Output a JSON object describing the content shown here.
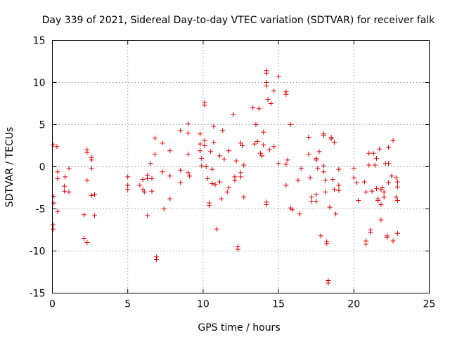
{
  "chart_data": {
    "type": "scatter",
    "title": "Day 339 of 2021, Sidereal Day-to-day VTEC variation (SDTVAR) for receiver falk",
    "xlabel": "GPS time / hours",
    "ylabel": "SDTVAR / TECUs",
    "xlim": [
      0,
      25
    ],
    "ylim": [
      -15,
      15
    ],
    "xticks": [
      "0",
      "5",
      "10",
      "15",
      "20",
      "25"
    ],
    "yticks": [
      "-15",
      "-10",
      "-5",
      "0",
      "5",
      "10",
      "15"
    ],
    "xtick_values": [
      0,
      5,
      10,
      15,
      20,
      25
    ],
    "ytick_values": [
      -15,
      -10,
      -5,
      0,
      5,
      10,
      15
    ],
    "grid": true,
    "marker": "+",
    "color": "#e00000",
    "series": [
      {
        "name": "SDTVAR",
        "points": [
          [
            0.05,
            2.6
          ],
          [
            0.1,
            -3.5
          ],
          [
            0.1,
            -4.3
          ],
          [
            0.05,
            -6.9
          ],
          [
            0.05,
            -7.4
          ],
          [
            0.3,
            2.4
          ],
          [
            0.35,
            -0.6
          ],
          [
            0.35,
            -1.4
          ],
          [
            0.35,
            -5.3
          ],
          [
            0.8,
            -2.3
          ],
          [
            0.8,
            -2.9
          ],
          [
            0.85,
            -1.2
          ],
          [
            1.1,
            -0.2
          ],
          [
            1.1,
            -3.0
          ],
          [
            2.1,
            -5.7
          ],
          [
            2.1,
            -8.5
          ],
          [
            2.3,
            2.0
          ],
          [
            2.3,
            1.7
          ],
          [
            2.3,
            -1.6
          ],
          [
            2.3,
            -9.0
          ],
          [
            2.6,
            -0.2
          ],
          [
            2.6,
            0.8
          ],
          [
            2.6,
            1.1
          ],
          [
            2.6,
            -3.4
          ],
          [
            2.8,
            -3.3
          ],
          [
            2.8,
            -5.8
          ],
          [
            5.0,
            -1.2
          ],
          [
            5.0,
            -2.2
          ],
          [
            5.0,
            -2.7
          ],
          [
            5.8,
            -2.2
          ],
          [
            6.0,
            -1.5
          ],
          [
            6.0,
            -2.7
          ],
          [
            6.1,
            -3.0
          ],
          [
            6.3,
            -1.0
          ],
          [
            6.3,
            -1.4
          ],
          [
            6.3,
            -5.8
          ],
          [
            6.5,
            0.4
          ],
          [
            6.6,
            -1.4
          ],
          [
            6.6,
            -2.9
          ],
          [
            6.8,
            3.4
          ],
          [
            6.8,
            1.5
          ],
          [
            6.9,
            -10.7
          ],
          [
            6.9,
            -11.0
          ],
          [
            7.3,
            2.8
          ],
          [
            7.3,
            -0.6
          ],
          [
            7.4,
            -5.0
          ],
          [
            7.8,
            1.9
          ],
          [
            7.8,
            -1.1
          ],
          [
            7.8,
            -3.8
          ],
          [
            8.5,
            4.3
          ],
          [
            8.5,
            -0.4
          ],
          [
            8.5,
            -1.9
          ],
          [
            9.0,
            5.1
          ],
          [
            9.0,
            4.0
          ],
          [
            9.0,
            1.5
          ],
          [
            9.0,
            -0.7
          ],
          [
            9.1,
            -1.1
          ],
          [
            9.8,
            3.9
          ],
          [
            9.8,
            2.7
          ],
          [
            9.8,
            1.9
          ],
          [
            9.9,
            1.0
          ],
          [
            9.9,
            0.1
          ],
          [
            10.1,
            7.6
          ],
          [
            10.1,
            7.3
          ],
          [
            10.1,
            3.1
          ],
          [
            10.1,
            2.5
          ],
          [
            10.2,
            0.0
          ],
          [
            10.3,
            -1.4
          ],
          [
            10.4,
            -4.3
          ],
          [
            10.4,
            -4.6
          ],
          [
            10.5,
            1.8
          ],
          [
            10.6,
            -0.3
          ],
          [
            10.6,
            -2.0
          ],
          [
            10.7,
            4.8
          ],
          [
            10.7,
            2.9
          ],
          [
            10.8,
            -2.1
          ],
          [
            10.9,
            -7.4
          ],
          [
            11.1,
            1.3
          ],
          [
            11.1,
            -1.8
          ],
          [
            11.2,
            -3.8
          ],
          [
            11.3,
            4.3
          ],
          [
            11.4,
            0.9
          ],
          [
            11.6,
            -3.0
          ],
          [
            11.7,
            1.9
          ],
          [
            11.7,
            -2.5
          ],
          [
            12.0,
            6.2
          ],
          [
            12.1,
            -1.2
          ],
          [
            12.1,
            -1.6
          ],
          [
            12.2,
            0.7
          ],
          [
            12.3,
            -9.5
          ],
          [
            12.3,
            -9.8
          ],
          [
            12.5,
            2.8
          ],
          [
            12.5,
            -0.7
          ],
          [
            12.5,
            -1.2
          ],
          [
            12.6,
            2.5
          ],
          [
            12.7,
            0.2
          ],
          [
            12.7,
            -3.6
          ],
          [
            13.3,
            7.0
          ],
          [
            13.4,
            2.7
          ],
          [
            13.5,
            5.0
          ],
          [
            13.6,
            3.0
          ],
          [
            13.7,
            6.9
          ],
          [
            13.8,
            1.6
          ],
          [
            13.9,
            1.3
          ],
          [
            14.0,
            4.1
          ],
          [
            14.0,
            2.6
          ],
          [
            14.2,
            11.4
          ],
          [
            14.2,
            11.1
          ],
          [
            14.2,
            10.0
          ],
          [
            14.2,
            9.6
          ],
          [
            14.2,
            -4.2
          ],
          [
            14.2,
            -4.5
          ],
          [
            14.3,
            8.0
          ],
          [
            14.4,
            2.0
          ],
          [
            14.5,
            7.5
          ],
          [
            14.7,
            9.0
          ],
          [
            14.7,
            2.4
          ],
          [
            15.0,
            10.7
          ],
          [
            15.0,
            0.4
          ],
          [
            15.5,
            8.9
          ],
          [
            15.5,
            8.6
          ],
          [
            15.5,
            0.3
          ],
          [
            15.5,
            -2.2
          ],
          [
            15.6,
            0.8
          ],
          [
            15.8,
            5.0
          ],
          [
            15.8,
            -4.9
          ],
          [
            15.9,
            -5.1
          ],
          [
            16.3,
            -1.6
          ],
          [
            16.4,
            -5.6
          ],
          [
            16.5,
            -0.2
          ],
          [
            17.0,
            3.5
          ],
          [
            17.0,
            1.5
          ],
          [
            17.1,
            -1.3
          ],
          [
            17.2,
            -3.6
          ],
          [
            17.2,
            -4.1
          ],
          [
            17.5,
            1.0
          ],
          [
            17.5,
            0.8
          ],
          [
            17.5,
            -3.3
          ],
          [
            17.5,
            -4.1
          ],
          [
            17.6,
            -0.2
          ],
          [
            17.7,
            1.8
          ],
          [
            17.8,
            -8.2
          ],
          [
            18.0,
            3.9
          ],
          [
            18.0,
            3.7
          ],
          [
            18.0,
            0.1
          ],
          [
            18.0,
            -0.6
          ],
          [
            18.1,
            -1.6
          ],
          [
            18.1,
            -3.0
          ],
          [
            18.2,
            -8.9
          ],
          [
            18.2,
            -9.1
          ],
          [
            18.3,
            -13.5
          ],
          [
            18.3,
            -13.8
          ],
          [
            18.4,
            -4.8
          ],
          [
            18.5,
            3.5
          ],
          [
            18.5,
            3.3
          ],
          [
            18.6,
            -1.5
          ],
          [
            18.7,
            2.9
          ],
          [
            18.7,
            -2.7
          ],
          [
            18.8,
            -5.6
          ],
          [
            19.0,
            -0.3
          ],
          [
            19.0,
            -2.2
          ],
          [
            19.0,
            -2.8
          ],
          [
            20.0,
            -0.2
          ],
          [
            20.0,
            -1.3
          ],
          [
            20.2,
            -1.9
          ],
          [
            20.3,
            -4.0
          ],
          [
            20.7,
            -1.8
          ],
          [
            20.8,
            -3.0
          ],
          [
            20.8,
            -8.8
          ],
          [
            20.8,
            -9.2
          ],
          [
            21.0,
            1.6
          ],
          [
            21.0,
            0.2
          ],
          [
            21.1,
            -7.5
          ],
          [
            21.1,
            -7.8
          ],
          [
            21.2,
            -2.9
          ],
          [
            21.3,
            1.6
          ],
          [
            21.4,
            0.2
          ],
          [
            21.5,
            1.0
          ],
          [
            21.5,
            -2.6
          ],
          [
            21.6,
            -3.8
          ],
          [
            21.6,
            -4.0
          ],
          [
            21.7,
            2.1
          ],
          [
            21.8,
            -2.7
          ],
          [
            21.8,
            -4.5
          ],
          [
            21.8,
            -6.3
          ],
          [
            21.9,
            -2.5
          ],
          [
            22.0,
            -3.0
          ],
          [
            22.0,
            -3.6
          ],
          [
            22.1,
            0.4
          ],
          [
            22.2,
            -8.2
          ],
          [
            22.2,
            -8.4
          ],
          [
            22.3,
            2.3
          ],
          [
            22.3,
            0.4
          ],
          [
            22.3,
            -1.9
          ],
          [
            22.5,
            -1.1
          ],
          [
            22.6,
            3.1
          ],
          [
            22.6,
            -8.8
          ],
          [
            22.8,
            -1.3
          ],
          [
            22.8,
            -3.6
          ],
          [
            22.9,
            -1.8
          ],
          [
            22.9,
            -2.4
          ],
          [
            22.9,
            -4.0
          ],
          [
            22.9,
            -7.9
          ]
        ]
      }
    ]
  }
}
